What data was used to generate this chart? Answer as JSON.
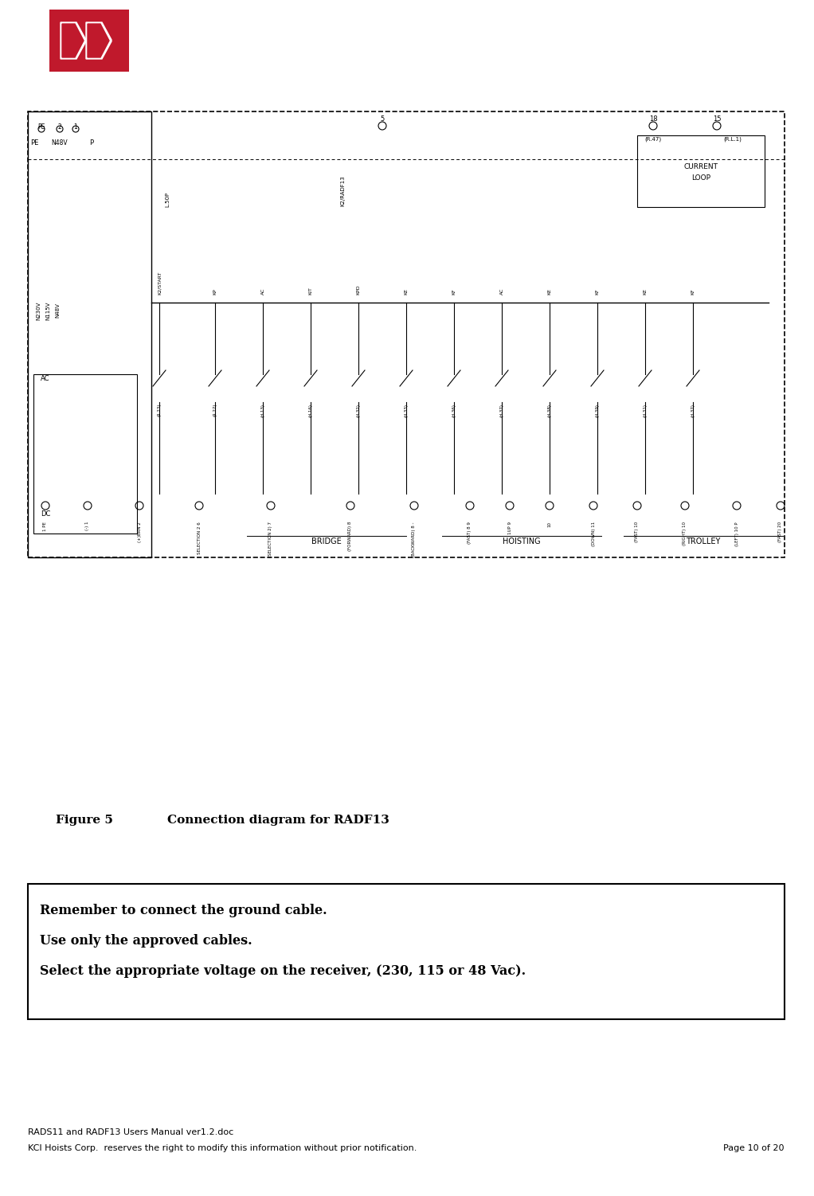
{
  "bg_color": "#ffffff",
  "logo_color": "#c0192c",
  "figure_caption": "Figure 5",
  "figure_title": "Connection diagram for RADF13",
  "note_lines": [
    "Remember to connect the ground cable.",
    "Use only the approved cables.",
    "Select the appropriate voltage on the receiver, (230, 115 or 48 Vac)."
  ],
  "footer_line1": "RADS11 and RADF13 Users Manual ver1.2.doc",
  "footer_line2": "KCI Hoists Corp.  reserves the right to modify this information without prior notification.",
  "footer_page": "Page 10 of 20"
}
